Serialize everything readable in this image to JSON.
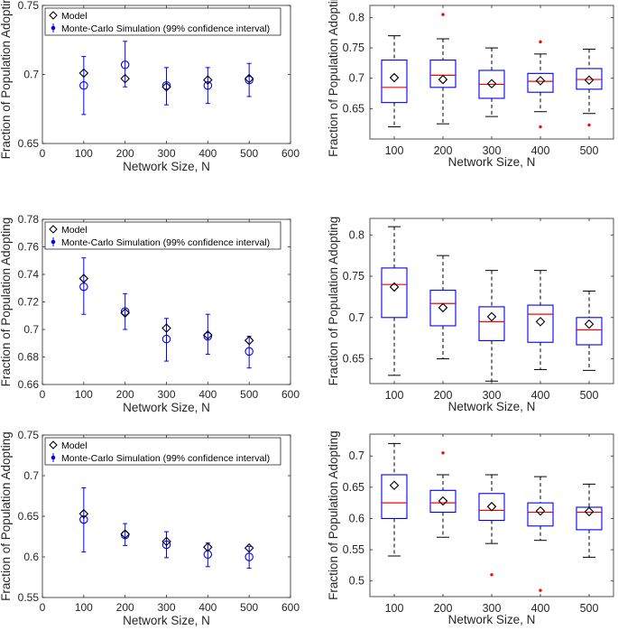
{
  "chart_data": [
    {
      "type": "scatter",
      "xlabel": "Network Size, N",
      "ylabel": "Fraction of Population Adopting",
      "xlim": [
        0,
        600
      ],
      "ylim": [
        0.65,
        0.75
      ],
      "xticks": [
        "0",
        "100",
        "200",
        "300",
        "400",
        "500",
        "600"
      ],
      "yticks": [
        "0.65",
        "0.7",
        "0.75"
      ],
      "legend": {
        "position": "top-left",
        "entries": [
          "Model",
          "Monte-Carlo Simulation (99% confidence interval)"
        ]
      },
      "x": [
        100,
        200,
        300,
        400,
        500
      ],
      "series": [
        {
          "name": "Model",
          "values": [
            0.701,
            0.697,
            0.691,
            0.696,
            0.697
          ]
        },
        {
          "name": "Monte-Carlo Simulation (99% confidence interval)",
          "values": [
            0.692,
            0.707,
            0.692,
            0.692,
            0.696
          ],
          "lower": [
            0.671,
            0.691,
            0.678,
            0.679,
            0.684
          ],
          "upper": [
            0.713,
            0.724,
            0.705,
            0.705,
            0.708
          ]
        }
      ]
    },
    {
      "type": "box",
      "ylabel": "Fraction of Population Adopting",
      "xlabel": "Network Size, N",
      "categories": [
        "100",
        "200",
        "300",
        "400",
        "500"
      ],
      "ylim": [
        0.6,
        0.82
      ],
      "yticks": [
        "0.65",
        "0.7",
        "0.75",
        "0.8"
      ],
      "boxes": [
        {
          "min": 0.62,
          "q1": 0.66,
          "median": 0.685,
          "q3": 0.73,
          "max": 0.77,
          "mean": 0.701,
          "outliers": []
        },
        {
          "min": 0.625,
          "q1": 0.685,
          "median": 0.705,
          "q3": 0.73,
          "max": 0.765,
          "mean": 0.698,
          "outliers": [
            0.805
          ]
        },
        {
          "min": 0.637,
          "q1": 0.667,
          "median": 0.69,
          "q3": 0.713,
          "max": 0.75,
          "mean": 0.691,
          "outliers": []
        },
        {
          "min": 0.645,
          "q1": 0.677,
          "median": 0.695,
          "q3": 0.708,
          "max": 0.74,
          "mean": 0.696,
          "outliers": [
            0.76,
            0.62
          ]
        },
        {
          "min": 0.642,
          "q1": 0.682,
          "median": 0.698,
          "q3": 0.716,
          "max": 0.748,
          "mean": 0.697,
          "outliers": [
            0.623
          ]
        }
      ]
    },
    {
      "type": "scatter",
      "xlabel": "Network Size, N",
      "ylabel": "Fraction of Population Adopting",
      "xlim": [
        0,
        600
      ],
      "ylim": [
        0.66,
        0.78
      ],
      "xticks": [
        "0",
        "100",
        "200",
        "300",
        "400",
        "500",
        "600"
      ],
      "yticks": [
        "0.66",
        "0.68",
        "0.7",
        "0.72",
        "0.74",
        "0.76",
        "0.78"
      ],
      "legend": {
        "position": "top-left",
        "entries": [
          "Model",
          "Monte-Carlo Simulation (99% confidence interval)"
        ]
      },
      "x": [
        100,
        200,
        300,
        400,
        500
      ],
      "series": [
        {
          "name": "Model",
          "values": [
            0.737,
            0.712,
            0.701,
            0.696,
            0.692
          ]
        },
        {
          "name": "Monte-Carlo Simulation (99% confidence interval)",
          "values": [
            0.731,
            0.713,
            0.693,
            0.695,
            0.684
          ],
          "lower": [
            0.711,
            0.7,
            0.677,
            0.682,
            0.672
          ],
          "upper": [
            0.752,
            0.726,
            0.708,
            0.711,
            0.695
          ]
        }
      ]
    },
    {
      "type": "box",
      "ylabel": "Fraction of Population Adopting",
      "xlabel": "Network Size, N",
      "categories": [
        "100",
        "200",
        "300",
        "400",
        "500"
      ],
      "ylim": [
        0.62,
        0.82
      ],
      "yticks": [
        "0.65",
        "0.7",
        "0.75",
        "0.8"
      ],
      "boxes": [
        {
          "min": 0.63,
          "q1": 0.7,
          "median": 0.74,
          "q3": 0.76,
          "max": 0.81,
          "mean": 0.737,
          "outliers": []
        },
        {
          "min": 0.65,
          "q1": 0.69,
          "median": 0.717,
          "q3": 0.733,
          "max": 0.775,
          "mean": 0.712,
          "outliers": []
        },
        {
          "min": 0.623,
          "q1": 0.672,
          "median": 0.695,
          "q3": 0.713,
          "max": 0.757,
          "mean": 0.701,
          "outliers": []
        },
        {
          "min": 0.637,
          "q1": 0.67,
          "median": 0.704,
          "q3": 0.715,
          "max": 0.757,
          "mean": 0.695,
          "outliers": []
        },
        {
          "min": 0.636,
          "q1": 0.667,
          "median": 0.685,
          "q3": 0.7,
          "max": 0.732,
          "mean": 0.692,
          "outliers": []
        }
      ]
    },
    {
      "type": "scatter",
      "xlabel": "Network Size, N",
      "ylabel": "Fraction of Population Adopting",
      "xlim": [
        0,
        600
      ],
      "ylim": [
        0.55,
        0.75
      ],
      "xticks": [
        "0",
        "100",
        "200",
        "300",
        "400",
        "500",
        "600"
      ],
      "yticks": [
        "0.55",
        "0.6",
        "0.65",
        "0.7",
        "0.75"
      ],
      "legend": {
        "position": "top-left",
        "entries": [
          "Model",
          "Monte-Carlo Simulation (99% confidence interval)"
        ]
      },
      "x": [
        100,
        200,
        300,
        400,
        500
      ],
      "series": [
        {
          "name": "Model",
          "values": [
            0.653,
            0.628,
            0.619,
            0.612,
            0.611
          ]
        },
        {
          "name": "Monte-Carlo Simulation (99% confidence interval)",
          "values": [
            0.646,
            0.627,
            0.615,
            0.603,
            0.6
          ],
          "lower": [
            0.606,
            0.614,
            0.599,
            0.588,
            0.586
          ],
          "upper": [
            0.685,
            0.641,
            0.631,
            0.617,
            0.613
          ]
        }
      ]
    },
    {
      "type": "box",
      "ylabel": "Fraction of Population Adopting",
      "xlabel": "Network Size, N",
      "categories": [
        "100",
        "200",
        "300",
        "400",
        "500"
      ],
      "ylim": [
        0.475,
        0.735
      ],
      "yticks": [
        "0.5",
        "0.55",
        "0.6",
        "0.65",
        "0.7"
      ],
      "boxes": [
        {
          "min": 0.54,
          "q1": 0.6,
          "median": 0.625,
          "q3": 0.67,
          "max": 0.72,
          "mean": 0.653,
          "outliers": []
        },
        {
          "min": 0.57,
          "q1": 0.61,
          "median": 0.625,
          "q3": 0.645,
          "max": 0.67,
          "mean": 0.628,
          "outliers": [
            0.705
          ]
        },
        {
          "min": 0.56,
          "q1": 0.597,
          "median": 0.613,
          "q3": 0.64,
          "max": 0.67,
          "mean": 0.619,
          "outliers": [
            0.51
          ]
        },
        {
          "min": 0.565,
          "q1": 0.588,
          "median": 0.61,
          "q3": 0.625,
          "max": 0.667,
          "mean": 0.612,
          "outliers": [
            0.485
          ]
        },
        {
          "min": 0.538,
          "q1": 0.582,
          "median": 0.61,
          "q3": 0.618,
          "max": 0.655,
          "mean": 0.611,
          "outliers": []
        }
      ]
    }
  ]
}
